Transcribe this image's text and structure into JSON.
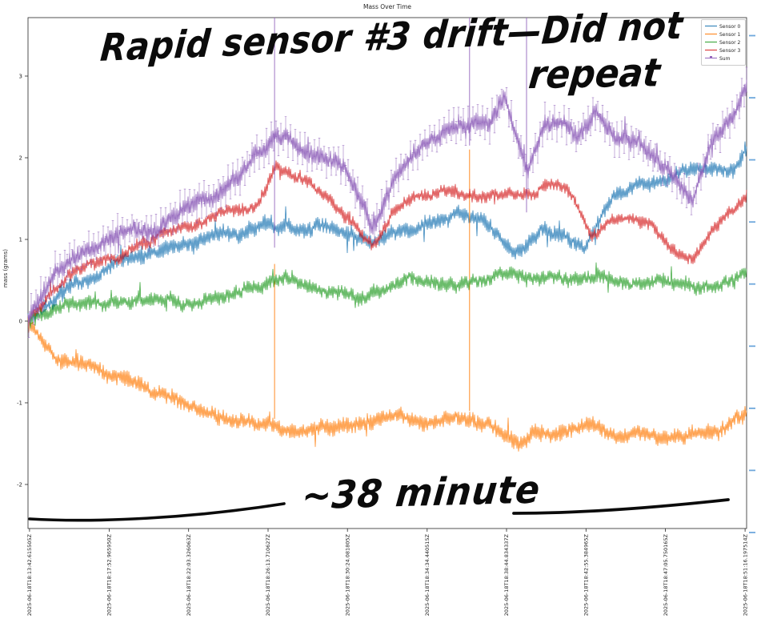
{
  "title": "Mass Over Time",
  "ylabel": "mass (grams)",
  "annotations": {
    "top_line1": "Rapid  sensor #3 drift—Did not",
    "top_line2": "repeat",
    "bottom": "~38 minute"
  },
  "legend": [
    {
      "label": "Sensor 0",
      "color": "#1f77b4",
      "marker": false
    },
    {
      "label": "Sensor 1",
      "color": "#ff7f0e",
      "marker": false
    },
    {
      "label": "Sensor 2",
      "color": "#2ca02c",
      "marker": false
    },
    {
      "label": "Sensor 3",
      "color": "#d62728",
      "marker": false
    },
    {
      "label": "Sum",
      "color": "#9467bd",
      "marker": true
    }
  ],
  "chart_data": {
    "type": "line",
    "title": "Mass Over Time",
    "ylabel": "mass (grams)",
    "xlabel": "",
    "grid": false,
    "legend_position": "upper right",
    "ylim": [
      -2.54,
      3.72
    ],
    "yticks": [
      -2,
      -1,
      0,
      1,
      2,
      3
    ],
    "duration_minutes": 37.72,
    "xticks": [
      {
        "t_min": 0.08,
        "label": "2025-06-18T18:13:42.615505Z"
      },
      {
        "t_min": 4.26,
        "label": "2025-06-18T18:17:52.965950Z"
      },
      {
        "t_min": 8.43,
        "label": "2025-06-18T18:22:03.326063Z"
      },
      {
        "t_min": 12.6,
        "label": "2025-06-18T18:26:13.710627Z"
      },
      {
        "t_min": 16.77,
        "label": "2025-06-18T18:30:24.081805Z"
      },
      {
        "t_min": 20.95,
        "label": "2025-06-18T18:34:34.440515Z"
      },
      {
        "t_min": 25.12,
        "label": "2025-06-18T18:38:44.834337Z"
      },
      {
        "t_min": 29.29,
        "label": "2025-06-18T18:42:55.384965Z"
      },
      {
        "t_min": 33.46,
        "label": "2025-06-18T18:47:05.750165Z"
      },
      {
        "t_min": 37.64,
        "label": "2025-06-18T18:51:16.197514Z"
      }
    ],
    "series": [
      {
        "name": "Sensor 0",
        "color": "#1f77b4",
        "noise": 0.1,
        "anchors": [
          [
            0,
            0
          ],
          [
            1.5,
            0.25
          ],
          [
            3.2,
            0.45
          ],
          [
            4.8,
            0.62
          ],
          [
            6.5,
            0.72
          ],
          [
            8.2,
            0.82
          ],
          [
            9.9,
            0.95
          ],
          [
            11.6,
            1.05
          ],
          [
            12.8,
            1.1
          ],
          [
            14.1,
            1.02
          ],
          [
            15.3,
            1.15
          ],
          [
            16.6,
            1.05
          ],
          [
            17.9,
            0.95
          ],
          [
            19.1,
            1.1
          ],
          [
            20.4,
            1.22
          ],
          [
            21.6,
            1.32
          ],
          [
            22.9,
            1.42
          ],
          [
            23.9,
            1.35
          ],
          [
            25.6,
            0.95
          ],
          [
            26.9,
            1.2
          ],
          [
            28.1,
            1.1
          ],
          [
            29.2,
            0.9
          ],
          [
            30.7,
            1.45
          ],
          [
            32.1,
            1.6
          ],
          [
            33.4,
            1.65
          ],
          [
            34.7,
            1.75
          ],
          [
            36.1,
            1.85
          ],
          [
            37.0,
            1.75
          ],
          [
            37.7,
            2.0
          ]
        ]
      },
      {
        "name": "Sensor 1",
        "color": "#ff7f0e",
        "noise": 0.1,
        "anchors": [
          [
            0,
            -0.05
          ],
          [
            1.5,
            -0.35
          ],
          [
            3.2,
            -0.5
          ],
          [
            4.8,
            -0.62
          ],
          [
            6.5,
            -0.75
          ],
          [
            8.2,
            -0.9
          ],
          [
            9.9,
            -1.05
          ],
          [
            11.6,
            -1.15
          ],
          [
            13.0,
            -1.2
          ],
          [
            14.5,
            -1.25
          ],
          [
            16.2,
            -1.2
          ],
          [
            17.9,
            -1.13
          ],
          [
            19.5,
            -1.08
          ],
          [
            21.2,
            -1.15
          ],
          [
            22.7,
            -1.05
          ],
          [
            24.2,
            -1.2
          ],
          [
            25.6,
            -1.5
          ],
          [
            26.5,
            -1.3
          ],
          [
            27.9,
            -1.25
          ],
          [
            29.2,
            -1.2
          ],
          [
            30.9,
            -1.3
          ],
          [
            32.1,
            -1.25
          ],
          [
            33.8,
            -1.35
          ],
          [
            35.1,
            -1.3
          ],
          [
            36.3,
            -1.35
          ],
          [
            37.7,
            -1.15
          ]
        ]
      },
      {
        "name": "Sensor 2",
        "color": "#2ca02c",
        "noise": 0.09,
        "anchors": [
          [
            0,
            0
          ],
          [
            1.9,
            0.08
          ],
          [
            4.0,
            0.15
          ],
          [
            6.1,
            0.25
          ],
          [
            8.2,
            0.3
          ],
          [
            10.3,
            0.42
          ],
          [
            12.4,
            0.55
          ],
          [
            14.1,
            0.48
          ],
          [
            15.8,
            0.42
          ],
          [
            17.4,
            0.38
          ],
          [
            19.1,
            0.5
          ],
          [
            20.8,
            0.6
          ],
          [
            22.5,
            0.55
          ],
          [
            23.7,
            0.6
          ],
          [
            25.0,
            0.65
          ],
          [
            26.7,
            0.55
          ],
          [
            28.4,
            0.42
          ],
          [
            30.0,
            0.45
          ],
          [
            31.7,
            0.38
          ],
          [
            33.4,
            0.42
          ],
          [
            35.1,
            0.3
          ],
          [
            36.3,
            0.42
          ],
          [
            37.7,
            0.5
          ]
        ]
      },
      {
        "name": "Sensor 3",
        "color": "#d62728",
        "noise": 0.08,
        "anchors": [
          [
            0,
            0
          ],
          [
            1.1,
            0.3
          ],
          [
            2.3,
            0.5
          ],
          [
            3.6,
            0.62
          ],
          [
            4.8,
            0.7
          ],
          [
            6.1,
            0.85
          ],
          [
            7.4,
            1.0
          ],
          [
            8.6,
            1.05
          ],
          [
            9.9,
            1.2
          ],
          [
            11.1,
            1.25
          ],
          [
            12.0,
            1.35
          ],
          [
            13.0,
            1.9
          ],
          [
            13.9,
            1.75
          ],
          [
            14.9,
            1.7
          ],
          [
            16.0,
            1.45
          ],
          [
            17.0,
            1.2
          ],
          [
            18.1,
            0.85
          ],
          [
            19.1,
            1.2
          ],
          [
            20.2,
            1.4
          ],
          [
            21.2,
            1.45
          ],
          [
            22.3,
            1.5
          ],
          [
            23.3,
            1.45
          ],
          [
            24.4,
            1.5
          ],
          [
            25.4,
            1.5
          ],
          [
            26.5,
            1.45
          ],
          [
            27.5,
            1.6
          ],
          [
            28.6,
            1.5
          ],
          [
            29.6,
            1.05
          ],
          [
            30.7,
            1.25
          ],
          [
            31.7,
            1.3
          ],
          [
            32.8,
            1.2
          ],
          [
            33.8,
            0.85
          ],
          [
            34.9,
            0.7
          ],
          [
            35.9,
            1.05
          ],
          [
            37.0,
            1.3
          ],
          [
            37.7,
            1.5
          ]
        ]
      },
      {
        "name": "Sum",
        "color": "#9467bd",
        "noise": 0.12,
        "errorbars": true,
        "anchors": [
          [
            0,
            0
          ],
          [
            1.5,
            0.55
          ],
          [
            3.2,
            0.75
          ],
          [
            4.8,
            0.95
          ],
          [
            6.5,
            1.1
          ],
          [
            8.2,
            1.35
          ],
          [
            9.9,
            1.5
          ],
          [
            11.1,
            1.7
          ],
          [
            13.0,
            2.3
          ],
          [
            14.1,
            2.1
          ],
          [
            15.3,
            2.0
          ],
          [
            16.6,
            1.85
          ],
          [
            18.1,
            1.15
          ],
          [
            19.5,
            1.9
          ],
          [
            20.8,
            2.2
          ],
          [
            22.1,
            2.4
          ],
          [
            23.1,
            2.45
          ],
          [
            24.2,
            2.4
          ],
          [
            25.0,
            2.7
          ],
          [
            26.2,
            1.7
          ],
          [
            27.1,
            2.3
          ],
          [
            27.9,
            2.4
          ],
          [
            28.8,
            2.2
          ],
          [
            29.8,
            2.5
          ],
          [
            30.9,
            2.2
          ],
          [
            32.1,
            2.3
          ],
          [
            33.4,
            2.0
          ],
          [
            34.9,
            1.45
          ],
          [
            35.9,
            2.1
          ],
          [
            37.0,
            2.4
          ],
          [
            37.7,
            2.75
          ]
        ]
      }
    ],
    "spikes": [
      {
        "t_min": 12.94,
        "sensor1_peak": 0.7,
        "sum_visible_bottom": 0.9,
        "sum_clipped_at_top": true
      },
      {
        "t_min": 23.18,
        "sensor1_peak": 2.1,
        "sum_visible_bottom": 2.15,
        "sum_clipped_at_top": true
      },
      {
        "t_min": 26.17,
        "sensor1_peak": null,
        "sum_visible_bottom": 1.33,
        "sum_clipped_at_top": true
      }
    ],
    "right_axis_ticks": {
      "count": 9,
      "color": "#6fa8dc",
      "labels_visible": false
    }
  }
}
